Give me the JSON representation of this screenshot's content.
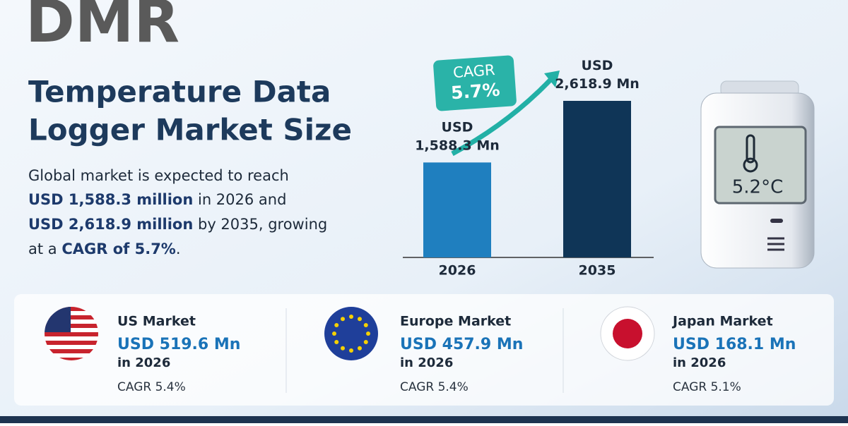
{
  "logo": "DMR",
  "title_lines": [
    "Temperature Data",
    "Logger Market Size"
  ],
  "description": [
    "Global market is expected to reach",
    "USD 1,588.3 million",
    "in 2026 and",
    "USD 2,618.9 million",
    "by 2035, growing",
    "at a",
    "CAGR of 5.7%",
    "."
  ],
  "chart_data": {
    "type": "bar",
    "categories": [
      "2026",
      "2035"
    ],
    "values": [
      1588.3,
      2618.9
    ],
    "value_labels": [
      "USD 1,588.3 Mn",
      "USD 2,618.9 Mn"
    ],
    "colors": [
      "#1f7fbf",
      "#0f3557"
    ],
    "annotation": {
      "label": "CAGR",
      "value": "5.7%"
    }
  },
  "device_reading": "5.2°C",
  "markets": [
    {
      "name": "US Market",
      "value": "USD 519.6 Mn",
      "year": "in 2026",
      "cagr": "CAGR 5.4%"
    },
    {
      "name": "Europe Market",
      "value": "USD 457.9 Mn",
      "year": "in 2026",
      "cagr": "CAGR 5.4%"
    },
    {
      "name": "Japan Market",
      "value": "USD 168.1 Mn",
      "year": "in 2026",
      "cagr": "CAGR 5.1%"
    }
  ]
}
